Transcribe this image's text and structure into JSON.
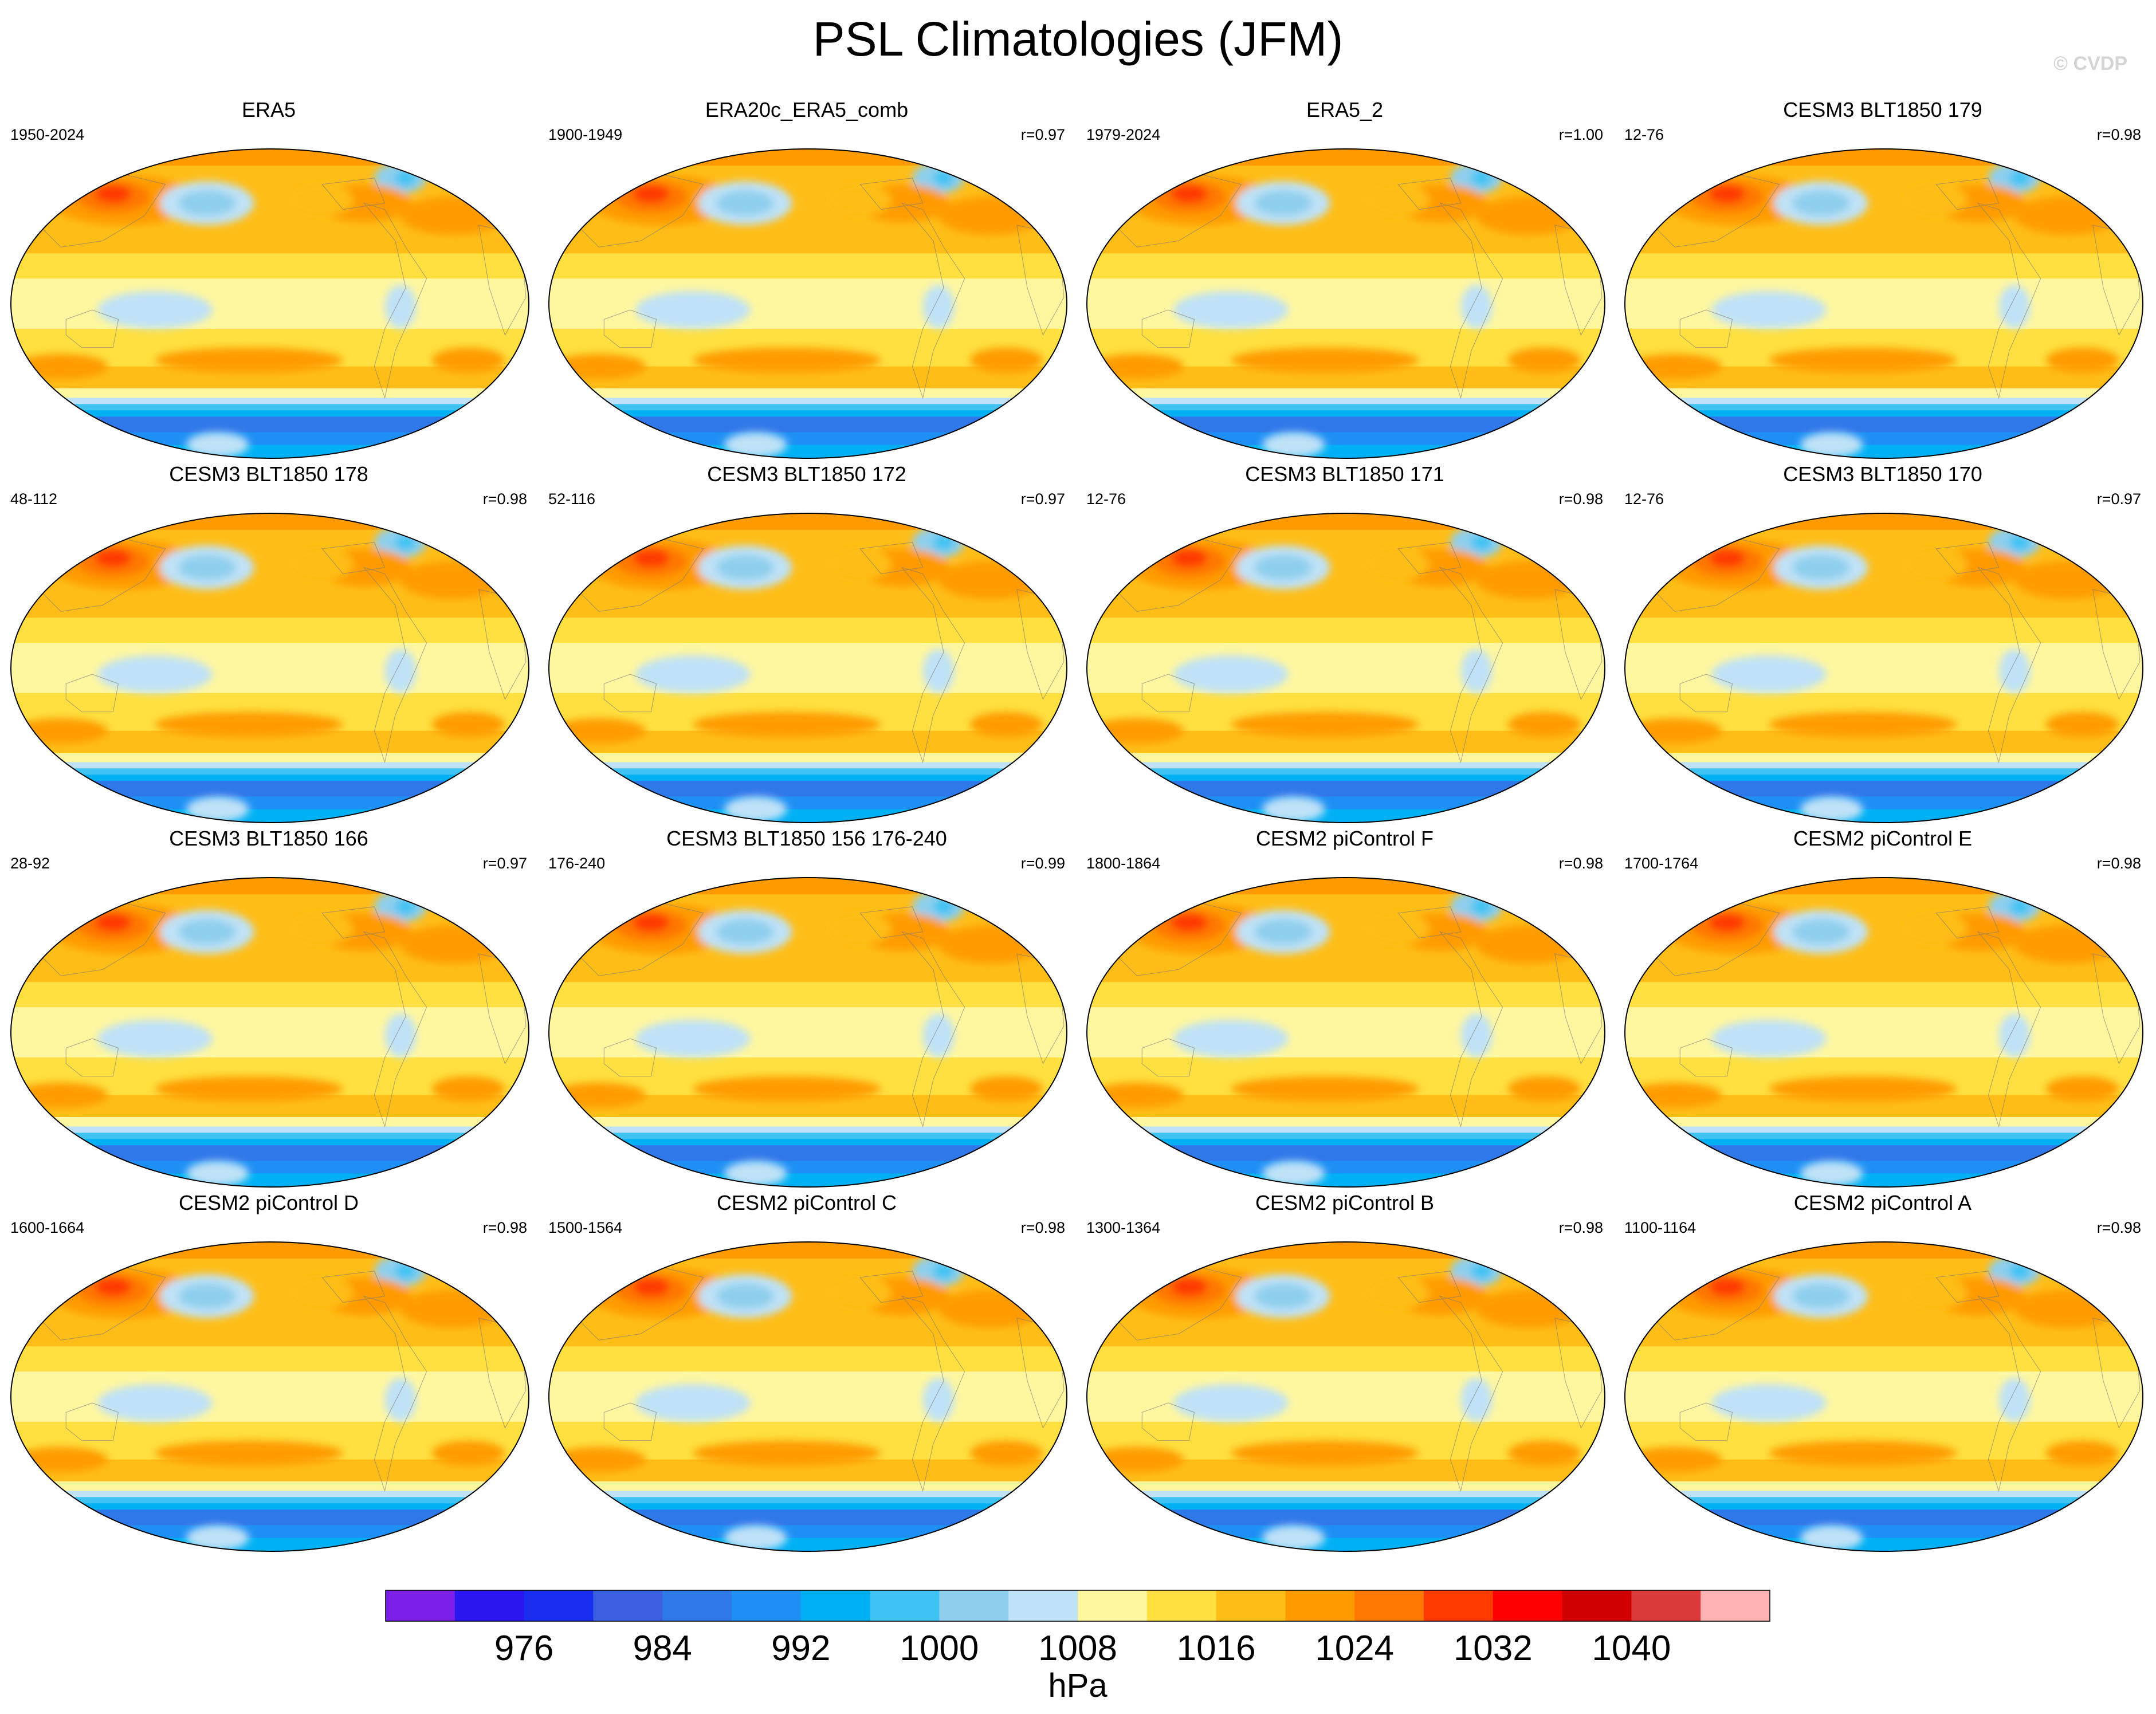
{
  "title": "PSL Climatologies (JFM)",
  "watermark": "© CVDP",
  "chart_data": {
    "type": "contour-map-panels",
    "projection": "Robinson (Pacific-centered)",
    "season": "JFM",
    "variable": "PSL",
    "units": "hPa",
    "panels": [
      {
        "title": "ERA5",
        "years": "1950-2024",
        "r": ""
      },
      {
        "title": "ERA20c_ERA5_comb",
        "years": "1900-1949",
        "r": "r=0.97"
      },
      {
        "title": "ERA5_2",
        "years": "1979-2024",
        "r": "r=1.00"
      },
      {
        "title": "CESM3 BLT1850 179",
        "years": "12-76",
        "r": "r=0.98"
      },
      {
        "title": "CESM3 BLT1850 178",
        "years": "48-112",
        "r": "r=0.98"
      },
      {
        "title": "CESM3 BLT1850 172",
        "years": "52-116",
        "r": "r=0.97"
      },
      {
        "title": "CESM3 BLT1850 171",
        "years": "12-76",
        "r": "r=0.98"
      },
      {
        "title": "CESM3 BLT1850 170",
        "years": "12-76",
        "r": "r=0.97"
      },
      {
        "title": "CESM3 BLT1850 166",
        "years": "28-92",
        "r": "r=0.97"
      },
      {
        "title": "CESM3 BLT1850 156 176-240",
        "years": "176-240",
        "r": "r=0.99"
      },
      {
        "title": "CESM2 piControl F",
        "years": "1800-1864",
        "r": "r=0.98"
      },
      {
        "title": "CESM2 piControl E",
        "years": "1700-1764",
        "r": "r=0.98"
      },
      {
        "title": "CESM2 piControl D",
        "years": "1600-1664",
        "r": "r=0.98"
      },
      {
        "title": "CESM2 piControl C",
        "years": "1500-1564",
        "r": "r=0.98"
      },
      {
        "title": "CESM2 piControl B",
        "years": "1300-1364",
        "r": "r=0.98"
      },
      {
        "title": "CESM2 piControl A",
        "years": "1100-1164",
        "r": "r=0.98"
      }
    ],
    "colorbar": {
      "label": "hPa",
      "levels": [
        972,
        976,
        980,
        984,
        988,
        992,
        996,
        1000,
        1004,
        1008,
        1012,
        1016,
        1020,
        1024,
        1028,
        1032,
        1036,
        1040,
        1044
      ],
      "tick_labels": [
        "976",
        "984",
        "992",
        "1000",
        "1008",
        "1016",
        "1024",
        "1032",
        "1040"
      ],
      "colors": [
        "#7b1fe8",
        "#2b16f0",
        "#1a2ef0",
        "#3a5fe0",
        "#2f78ea",
        "#1e90f5",
        "#00b0f5",
        "#3ec3f3",
        "#8ecfee",
        "#bfe2f7",
        "#fff7a0",
        "#ffe040",
        "#ffbe17",
        "#ff9b00",
        "#ff7800",
        "#ff3b00",
        "#ff0000",
        "#d10000",
        "#da3a3a",
        "#ffb2b2"
      ]
    }
  }
}
